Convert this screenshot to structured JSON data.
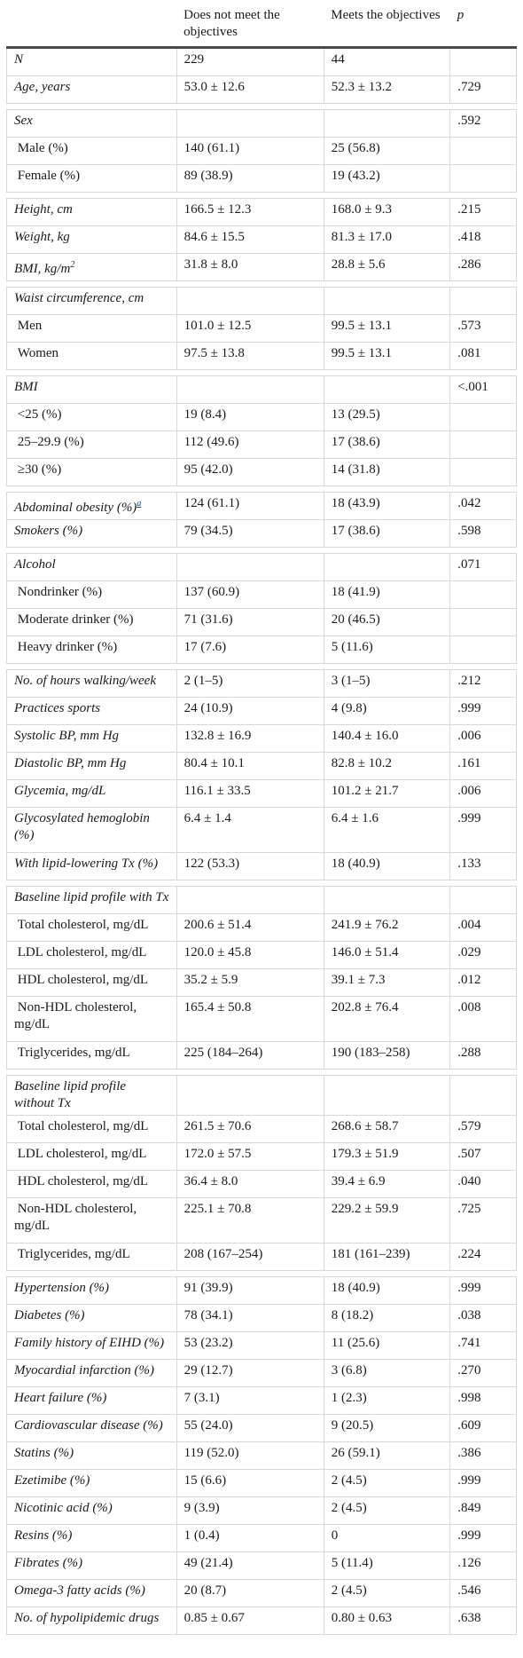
{
  "headers": {
    "label": "",
    "col1": "Does not meet the objectives",
    "col2": "Meets the objectives",
    "col3": "p"
  },
  "rows": [
    {
      "label": "N",
      "a": "229",
      "b": "44",
      "p": "",
      "italic": true
    },
    {
      "label": "Age, years",
      "a": "53.0 ± 12.6",
      "b": "52.3 ± 13.2",
      "p": ".729",
      "italic": true
    },
    {
      "spacer": true
    },
    {
      "label": "Sex",
      "a": "",
      "b": "",
      "p": ".592",
      "italic": true
    },
    {
      "label": " Male (%)",
      "a": "140 (61.1)",
      "b": "25 (56.8)",
      "p": "",
      "italic": false
    },
    {
      "label": " Female (%)",
      "a": "89 (38.9)",
      "b": "19 (43.2)",
      "p": "",
      "italic": false
    },
    {
      "spacer": true
    },
    {
      "label": "Height, cm",
      "a": "166.5 ± 12.3",
      "b": "168.0 ± 9.3",
      "p": ".215",
      "italic": true
    },
    {
      "label": "Weight, kg",
      "a": "84.6 ± 15.5",
      "b": "81.3 ± 17.0",
      "p": ".418",
      "italic": true
    },
    {
      "label": "BMI, kg/m",
      "sup": "2",
      "a": "31.8 ± 8.0",
      "b": "28.8 ± 5.6",
      "p": ".286",
      "italic": true
    },
    {
      "spacer": true
    },
    {
      "label": "Waist circumference, cm",
      "a": "",
      "b": "",
      "p": "",
      "italic": true
    },
    {
      "label": " Men",
      "a": "101.0 ± 12.5",
      "b": "99.5 ± 13.1",
      "p": ".573",
      "italic": false
    },
    {
      "label": " Women",
      "a": "97.5 ± 13.8",
      "b": "99.5 ± 13.1",
      "p": ".081",
      "italic": false
    },
    {
      "spacer": true
    },
    {
      "label": "BMI",
      "a": "",
      "b": "",
      "p": "<.001",
      "italic": true
    },
    {
      "label": " <25 (%)",
      "a": "19 (8.4)",
      "b": "13 (29.5)",
      "p": "",
      "italic": false
    },
    {
      "label": " 25–29.9 (%)",
      "a": "112 (49.6)",
      "b": "17 (38.6)",
      "p": "",
      "italic": false
    },
    {
      "label": " ≥30 (%)",
      "a": "95 (42.0)",
      "b": "14 (31.8)",
      "p": "",
      "italic": false
    },
    {
      "spacer": true
    },
    {
      "label": "Abdominal obesity (%)",
      "fn": "a",
      "a": "124 (61.1)",
      "b": "18 (43.9)",
      "p": ".042",
      "italic": true
    },
    {
      "label": "Smokers (%)",
      "a": "79 (34.5)",
      "b": "17 (38.6)",
      "p": ".598",
      "italic": true
    },
    {
      "spacer": true
    },
    {
      "label": "Alcohol",
      "a": "",
      "b": "",
      "p": ".071",
      "italic": true
    },
    {
      "label": " Nondrinker (%)",
      "a": "137 (60.9)",
      "b": "18 (41.9)",
      "p": "",
      "italic": false
    },
    {
      "label": " Moderate drinker (%)",
      "a": "71 (31.6)",
      "b": "20 (46.5)",
      "p": "",
      "italic": false
    },
    {
      "label": " Heavy drinker (%)",
      "a": "17 (7.6)",
      "b": "5 (11.6)",
      "p": "",
      "italic": false
    },
    {
      "spacer": true
    },
    {
      "label": "No. of hours walking/week",
      "a": "2 (1–5)",
      "b": "3 (1–5)",
      "p": ".212",
      "italic": true
    },
    {
      "label": "Practices sports",
      "a": "24 (10.9)",
      "b": "4 (9.8)",
      "p": ".999",
      "italic": true
    },
    {
      "label": "Systolic BP, mm Hg",
      "a": "132.8 ± 16.9",
      "b": "140.4 ± 16.0",
      "p": ".006",
      "italic": true
    },
    {
      "label": "Diastolic BP, mm Hg",
      "a": "80.4 ± 10.1",
      "b": "82.8 ± 10.2",
      "p": ".161",
      "italic": true
    },
    {
      "label": "Glycemia, mg/dL",
      "a": "116.1 ± 33.5",
      "b": "101.2 ± 21.7",
      "p": ".006",
      "italic": true
    },
    {
      "label": "Glycosylated hemoglobin (%)",
      "a": "6.4 ± 1.4",
      "b": "6.4 ± 1.6",
      "p": ".999",
      "italic": true,
      "tall": true
    },
    {
      "label": "With lipid-lowering Tx (%)",
      "a": "122 (53.3)",
      "b": "18 (40.9)",
      "p": ".133",
      "italic": true
    },
    {
      "spacer": true
    },
    {
      "label": "Baseline lipid profile with Tx",
      "a": "",
      "b": "",
      "p": "",
      "italic": true
    },
    {
      "label": " Total cholesterol, mg/dL",
      "a": "200.6 ± 51.4",
      "b": "241.9 ± 76.2",
      "p": ".004",
      "italic": false
    },
    {
      "label": " LDL cholesterol, mg/dL",
      "a": "120.0 ± 45.8",
      "b": "146.0 ± 51.4",
      "p": ".029",
      "italic": false
    },
    {
      "label": " HDL cholesterol, mg/dL",
      "a": "35.2 ± 5.9",
      "b": "39.1 ± 7.3",
      "p": ".012",
      "italic": false
    },
    {
      "label": " Non-HDL cholesterol, mg/dL",
      "a": "165.4 ± 50.8",
      "b": "202.8 ± 76.4",
      "p": ".008",
      "italic": false,
      "tall": true
    },
    {
      "label": " Triglycerides, mg/dL",
      "a": "225 (184–264)",
      "b": "190 (183–258)",
      "p": ".288",
      "italic": false
    },
    {
      "spacer": true
    },
    {
      "label": "Baseline lipid profile without Tx",
      "a": "",
      "b": "",
      "p": "",
      "italic": true
    },
    {
      "label": " Total cholesterol, mg/dL",
      "a": "261.5 ± 70.6",
      "b": "268.6 ± 58.7",
      "p": ".579",
      "italic": false
    },
    {
      "label": " LDL cholesterol, mg/dL",
      "a": "172.0 ± 57.5",
      "b": "179.3 ± 51.9",
      "p": ".507",
      "italic": false
    },
    {
      "label": " HDL cholesterol, mg/dL",
      "a": "36.4 ± 8.0",
      "b": "39.4 ± 6.9",
      "p": ".040",
      "italic": false
    },
    {
      "label": " Non-HDL cholesterol, mg/dL",
      "a": "225.1 ± 70.8",
      "b": "229.2 ± 59.9",
      "p": ".725",
      "italic": false,
      "tall": true
    },
    {
      "label": " Triglycerides, mg/dL",
      "a": "208 (167–254)",
      "b": "181 (161–239)",
      "p": ".224",
      "italic": false
    },
    {
      "spacer": true
    },
    {
      "label": "Hypertension (%)",
      "a": "91 (39.9)",
      "b": "18 (40.9)",
      "p": ".999",
      "italic": true
    },
    {
      "label": "Diabetes (%)",
      "a": "78 (34.1)",
      "b": "8 (18.2)",
      "p": ".038",
      "italic": true
    },
    {
      "label": "Family history of EIHD (%)",
      "a": "53 (23.2)",
      "b": "11 (25.6)",
      "p": ".741",
      "italic": true
    },
    {
      "label": "Myocardial infarction (%)",
      "a": "29 (12.7)",
      "b": "3 (6.8)",
      "p": ".270",
      "italic": true
    },
    {
      "label": "Heart failure (%)",
      "a": "7 (3.1)",
      "b": "1 (2.3)",
      "p": ".998",
      "italic": true
    },
    {
      "label": "Cardiovascular disease (%)",
      "a": "55 (24.0)",
      "b": "9 (20.5)",
      "p": ".609",
      "italic": true
    },
    {
      "label": "Statins (%)",
      "a": "119 (52.0)",
      "b": "26 (59.1)",
      "p": ".386",
      "italic": true
    },
    {
      "label": "Ezetimibe (%)",
      "a": "15 (6.6)",
      "b": "2 (4.5)",
      "p": ".999",
      "italic": true
    },
    {
      "label": "Nicotinic acid (%)",
      "a": "9 (3.9)",
      "b": "2 (4.5)",
      "p": ".849",
      "italic": true
    },
    {
      "label": "Resins (%)",
      "a": "1 (0.4)",
      "b": "0",
      "p": ".999",
      "italic": true
    },
    {
      "label": "Fibrates (%)",
      "a": "49 (21.4)",
      "b": "5 (11.4)",
      "p": ".126",
      "italic": true
    },
    {
      "label": "Omega-3 fatty acids (%)",
      "a": "20 (8.7)",
      "b": "2 (4.5)",
      "p": ".546",
      "italic": true
    },
    {
      "label": "No. of hypolipidemic drugs",
      "a": "0.85 ± 0.67",
      "b": "0.80 ± 0.63",
      "p": ".638",
      "italic": true
    }
  ]
}
